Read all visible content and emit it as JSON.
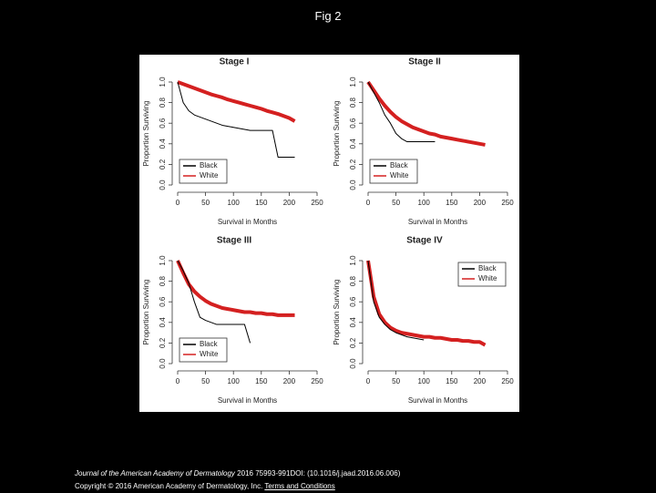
{
  "header": {
    "title": "Fig 2"
  },
  "chart_data": [
    {
      "type": "line",
      "title": "Stage I",
      "xlabel": "Survival in Months",
      "ylabel": "Proportion Surviving",
      "x": [
        0,
        10,
        20,
        30,
        40,
        50,
        60,
        70,
        80,
        90,
        100,
        110,
        120,
        130,
        140,
        150,
        160,
        170,
        180,
        190,
        200,
        210
      ],
      "series": [
        {
          "name": "Black",
          "color": "#000000",
          "values": [
            1.0,
            0.8,
            0.72,
            0.68,
            0.66,
            0.64,
            0.62,
            0.6,
            0.58,
            0.57,
            0.56,
            0.55,
            0.54,
            0.53,
            0.53,
            0.53,
            0.53,
            0.53,
            0.27,
            0.27,
            0.27,
            0.27
          ]
        },
        {
          "name": "White",
          "color": "#d42020",
          "values": [
            1.0,
            0.98,
            0.96,
            0.94,
            0.92,
            0.9,
            0.88,
            0.865,
            0.85,
            0.83,
            0.815,
            0.8,
            0.785,
            0.77,
            0.755,
            0.74,
            0.72,
            0.705,
            0.69,
            0.67,
            0.65,
            0.62
          ]
        }
      ],
      "xlim": [
        0,
        250
      ],
      "xticks": [
        0,
        50,
        100,
        150,
        200,
        250
      ],
      "ylim": [
        0,
        1
      ],
      "yticks": [
        {
          "value": 0,
          "label": "0.0"
        },
        0.2,
        0.4,
        0.6,
        0.8,
        {
          "value": 1,
          "label": "1.0"
        }
      ],
      "legend": "lower left"
    },
    {
      "type": "line",
      "title": "Stage II",
      "xlabel": "Survival in Months",
      "ylabel": "Proportion Surviving",
      "x": [
        0,
        10,
        20,
        30,
        40,
        50,
        60,
        70,
        80,
        90,
        100,
        110,
        120,
        130,
        140,
        150,
        160,
        170,
        180,
        190,
        200,
        210
      ],
      "series": [
        {
          "name": "Black",
          "color": "#000000",
          "values": [
            1.0,
            0.9,
            0.8,
            0.68,
            0.6,
            0.5,
            0.45,
            0.42,
            0.42,
            0.42,
            0.42,
            0.42,
            0.42,
            null,
            null,
            null,
            null,
            null,
            null,
            null,
            null,
            null
          ]
        },
        {
          "name": "White",
          "color": "#d42020",
          "values": [
            1.0,
            0.92,
            0.84,
            0.77,
            0.71,
            0.66,
            0.62,
            0.59,
            0.56,
            0.54,
            0.52,
            0.5,
            0.49,
            0.47,
            0.46,
            0.45,
            0.44,
            0.43,
            0.42,
            0.41,
            0.4,
            0.39
          ]
        }
      ],
      "xlim": [
        0,
        250
      ],
      "xticks": [
        0,
        50,
        100,
        150,
        200,
        250
      ],
      "ylim": [
        0,
        1
      ],
      "yticks": [
        {
          "value": 0,
          "label": "0.0"
        },
        0.2,
        0.4,
        0.6,
        0.8,
        {
          "value": 1,
          "label": "1.0"
        }
      ],
      "legend": "lower left"
    },
    {
      "type": "line",
      "title": "Stage III",
      "xlabel": "Survival in Months",
      "ylabel": "Proportion Surviving",
      "x": [
        0,
        10,
        20,
        30,
        40,
        50,
        60,
        70,
        80,
        90,
        100,
        110,
        120,
        130,
        140,
        150,
        160,
        170,
        180,
        190,
        200,
        210
      ],
      "series": [
        {
          "name": "Black",
          "color": "#000000",
          "values": [
            1.0,
            0.9,
            0.78,
            0.6,
            0.45,
            0.42,
            0.4,
            0.38,
            0.38,
            0.38,
            0.38,
            0.38,
            0.38,
            0.2,
            null,
            null,
            null,
            null,
            null,
            null,
            null,
            null
          ]
        },
        {
          "name": "White",
          "color": "#d42020",
          "values": [
            1.0,
            0.88,
            0.77,
            0.7,
            0.65,
            0.61,
            0.58,
            0.56,
            0.54,
            0.53,
            0.52,
            0.51,
            0.5,
            0.5,
            0.49,
            0.49,
            0.48,
            0.48,
            0.47,
            0.47,
            0.47,
            0.47
          ]
        }
      ],
      "xlim": [
        0,
        250
      ],
      "xticks": [
        0,
        50,
        100,
        150,
        200,
        250
      ],
      "ylim": [
        0,
        1
      ],
      "yticks": [
        {
          "value": 0,
          "label": "0.0"
        },
        0.2,
        0.4,
        0.6,
        0.8,
        {
          "value": 1,
          "label": "1.0"
        }
      ],
      "legend": "lower left"
    },
    {
      "type": "line",
      "title": "Stage IV",
      "xlabel": "Survival in Months",
      "ylabel": "Proportion Surviving",
      "x": [
        0,
        10,
        20,
        30,
        40,
        50,
        60,
        70,
        80,
        90,
        100,
        110,
        120,
        130,
        140,
        150,
        160,
        170,
        180,
        190,
        200,
        210
      ],
      "series": [
        {
          "name": "Black",
          "color": "#000000",
          "values": [
            1.0,
            0.6,
            0.45,
            0.38,
            0.33,
            0.3,
            0.28,
            0.26,
            0.25,
            0.24,
            0.23,
            null,
            null,
            null,
            null,
            null,
            null,
            null,
            null,
            null,
            null,
            null
          ]
        },
        {
          "name": "White",
          "color": "#d42020",
          "values": [
            1.0,
            0.65,
            0.48,
            0.4,
            0.35,
            0.32,
            0.3,
            0.29,
            0.28,
            0.27,
            0.26,
            0.26,
            0.25,
            0.25,
            0.24,
            0.23,
            0.23,
            0.22,
            0.22,
            0.21,
            0.21,
            0.18
          ]
        }
      ],
      "xlim": [
        0,
        250
      ],
      "xticks": [
        0,
        50,
        100,
        150,
        200,
        250
      ],
      "ylim": [
        0,
        1
      ],
      "yticks": [
        {
          "value": 0,
          "label": "0.0"
        },
        0.2,
        0.4,
        0.6,
        0.8,
        {
          "value": 1,
          "label": "1.0"
        }
      ],
      "legend": "upper right"
    }
  ],
  "footer": {
    "journal": "Journal of the American Academy of Dermatology",
    "citation": "2016 75993-991DOI: (10.1016/j.jaad.2016.06.006)",
    "copyright": "Copyright © 2016 American Academy of Dermatology, Inc.",
    "link": "Terms and Conditions"
  }
}
